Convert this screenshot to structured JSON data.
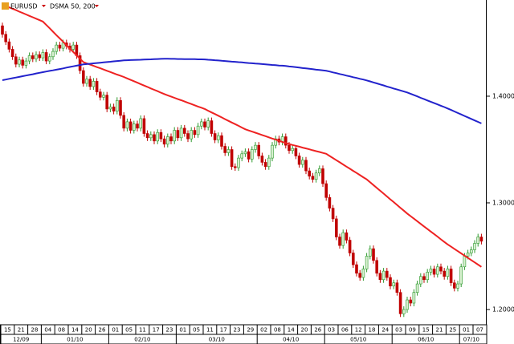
{
  "chart_data": {
    "type": "candlestick",
    "symbol": "EURUSD",
    "indicator": "DSMA 50, 200",
    "categories": [
      "15",
      null,
      null,
      null,
      "21",
      null,
      null,
      null,
      "28",
      null,
      null,
      null,
      "04",
      null,
      null,
      null,
      "08",
      null,
      null,
      null,
      "14",
      null,
      null,
      null,
      "20",
      null,
      null,
      null,
      "26",
      null,
      null,
      null,
      "01",
      null,
      null,
      null,
      "05",
      null,
      null,
      null,
      "11",
      null,
      null,
      null,
      "17",
      null,
      null,
      null,
      "23",
      null,
      null,
      null,
      "01",
      null,
      null,
      null,
      "05",
      null,
      null,
      null,
      "11",
      null,
      null,
      null,
      "17",
      null,
      null,
      null,
      "23",
      null,
      null,
      null,
      "29",
      null,
      null,
      null,
      "02",
      null,
      null,
      null,
      "08",
      null,
      null,
      null,
      "14",
      null,
      null,
      null,
      "20",
      null,
      null,
      null,
      "26",
      null,
      null,
      null,
      "03",
      null,
      null,
      null,
      "06",
      null,
      null,
      null,
      "12",
      null,
      null,
      null,
      "18",
      null,
      null,
      null,
      "24",
      null,
      null,
      null,
      "03",
      null,
      null,
      null,
      "09",
      null,
      null,
      null,
      "15",
      null,
      null,
      null,
      "21",
      null,
      null,
      null,
      "25",
      null,
      null,
      null,
      "01",
      null,
      null,
      null,
      "07",
      null,
      null
    ],
    "month_categories": [
      "12/09",
      null,
      null,
      null,
      null,
      null,
      null,
      null,
      null,
      null,
      null,
      null,
      "01/10",
      null,
      null,
      null,
      null,
      null,
      null,
      null,
      null,
      null,
      null,
      null,
      null,
      null,
      null,
      null,
      null,
      null,
      null,
      null,
      "02/10",
      null,
      null,
      null,
      null,
      null,
      null,
      null,
      null,
      null,
      null,
      null,
      null,
      null,
      null,
      null,
      null,
      null,
      null,
      null,
      "03/10",
      null,
      null,
      null,
      null,
      null,
      null,
      null,
      null,
      null,
      null,
      null,
      null,
      null,
      null,
      null,
      null,
      null,
      null,
      null,
      null,
      null,
      null,
      null,
      "04/10",
      null,
      null,
      null,
      null,
      null,
      null,
      null,
      null,
      null,
      null,
      null,
      null,
      null,
      null,
      null,
      null,
      null,
      null,
      null,
      "05/10",
      null,
      null,
      null,
      null,
      null,
      null,
      null,
      null,
      null,
      null,
      null,
      null,
      null,
      null,
      null,
      null,
      null,
      null,
      null,
      "06/10",
      null,
      null,
      null,
      null,
      null,
      null,
      null,
      null,
      null,
      null,
      null,
      null,
      null,
      null,
      null,
      null,
      null,
      null,
      null,
      "07/10",
      null,
      null,
      null,
      null,
      null,
      null
    ],
    "open": [
      1.466,
      1.458,
      1.451,
      1.444,
      1.437,
      1.43,
      1.434,
      1.429,
      1.433,
      1.438,
      1.435,
      1.439,
      1.436,
      1.441,
      1.433,
      1.437,
      1.442,
      1.448,
      1.445,
      1.45,
      1.447,
      1.444,
      1.448,
      1.438,
      1.424,
      1.412,
      1.416,
      1.409,
      1.414,
      1.404,
      1.399,
      1.401,
      1.388,
      1.39,
      1.386,
      1.396,
      1.382,
      1.37,
      1.376,
      1.368,
      1.374,
      1.37,
      1.379,
      1.365,
      1.361,
      1.364,
      1.358,
      1.366,
      1.36,
      1.355,
      1.362,
      1.358,
      1.368,
      1.361,
      1.37,
      1.365,
      1.36,
      1.368,
      1.364,
      1.372,
      1.376,
      1.371,
      1.377,
      1.365,
      1.359,
      1.363,
      1.353,
      1.347,
      1.35,
      1.334,
      1.333,
      1.342,
      1.346,
      1.348,
      1.341,
      1.35,
      1.354,
      1.344,
      1.338,
      1.334,
      1.342,
      1.354,
      1.36,
      1.357,
      1.362,
      1.354,
      1.349,
      1.351,
      1.344,
      1.336,
      1.34,
      1.33,
      1.325,
      1.322,
      1.328,
      1.332,
      1.318,
      1.305,
      1.295,
      1.285,
      1.268,
      1.26,
      1.272,
      1.265,
      1.253,
      1.242,
      1.234,
      1.23,
      1.238,
      1.25,
      1.257,
      1.246,
      1.234,
      1.228,
      1.236,
      1.23,
      1.222,
      1.225,
      1.216,
      1.196,
      1.2,
      1.209,
      1.206,
      1.216,
      1.224,
      1.231,
      1.228,
      1.235,
      1.238,
      1.233,
      1.24,
      1.236,
      1.231,
      1.238,
      1.225,
      1.22,
      1.224,
      1.24,
      1.25,
      1.253,
      1.256,
      1.262,
      1.268
    ],
    "high": [
      1.469,
      1.461,
      1.454,
      1.447,
      1.44,
      1.437,
      1.437,
      1.436,
      1.441,
      1.441,
      1.442,
      1.442,
      1.444,
      1.444,
      1.44,
      1.445,
      1.451,
      1.451,
      1.453,
      1.453,
      1.45,
      1.451,
      1.451,
      1.441,
      1.427,
      1.419,
      1.419,
      1.417,
      1.417,
      1.407,
      1.404,
      1.404,
      1.393,
      1.393,
      1.399,
      1.399,
      1.385,
      1.379,
      1.379,
      1.377,
      1.377,
      1.382,
      1.382,
      1.368,
      1.367,
      1.367,
      1.369,
      1.369,
      1.363,
      1.365,
      1.365,
      1.371,
      1.371,
      1.373,
      1.373,
      1.368,
      1.371,
      1.371,
      1.375,
      1.379,
      1.379,
      1.38,
      1.38,
      1.368,
      1.366,
      1.366,
      1.356,
      1.353,
      1.353,
      1.337,
      1.345,
      1.349,
      1.351,
      1.351,
      1.353,
      1.357,
      1.357,
      1.347,
      1.341,
      1.345,
      1.357,
      1.363,
      1.363,
      1.365,
      1.365,
      1.357,
      1.354,
      1.354,
      1.347,
      1.343,
      1.343,
      1.333,
      1.328,
      1.331,
      1.335,
      1.335,
      1.321,
      1.308,
      1.298,
      1.288,
      1.271,
      1.275,
      1.275,
      1.268,
      1.256,
      1.245,
      1.237,
      1.241,
      1.253,
      1.26,
      1.26,
      1.249,
      1.237,
      1.239,
      1.239,
      1.233,
      1.228,
      1.228,
      1.219,
      1.203,
      1.212,
      1.212,
      1.219,
      1.227,
      1.234,
      1.234,
      1.238,
      1.241,
      1.241,
      1.243,
      1.243,
      1.239,
      1.241,
      1.241,
      1.228,
      1.227,
      1.243,
      1.253,
      1.256,
      1.259,
      1.265,
      1.271,
      1.271
    ],
    "low": [
      1.455,
      1.448,
      1.441,
      1.434,
      1.427,
      1.427,
      1.426,
      1.426,
      1.43,
      1.432,
      1.432,
      1.433,
      1.433,
      1.43,
      1.43,
      1.434,
      1.439,
      1.442,
      1.442,
      1.444,
      1.441,
      1.441,
      1.435,
      1.421,
      1.409,
      1.409,
      1.406,
      1.406,
      1.401,
      1.396,
      1.396,
      1.385,
      1.385,
      1.383,
      1.383,
      1.379,
      1.367,
      1.367,
      1.365,
      1.365,
      1.367,
      1.367,
      1.362,
      1.358,
      1.358,
      1.355,
      1.355,
      1.357,
      1.352,
      1.352,
      1.355,
      1.355,
      1.358,
      1.358,
      1.362,
      1.357,
      1.357,
      1.361,
      1.361,
      1.369,
      1.368,
      1.368,
      1.362,
      1.356,
      1.356,
      1.35,
      1.344,
      1.344,
      1.331,
      1.33,
      1.33,
      1.339,
      1.343,
      1.338,
      1.338,
      1.347,
      1.341,
      1.335,
      1.331,
      1.331,
      1.339,
      1.351,
      1.354,
      1.354,
      1.351,
      1.346,
      1.346,
      1.341,
      1.333,
      1.333,
      1.327,
      1.322,
      1.319,
      1.319,
      1.325,
      1.315,
      1.302,
      1.292,
      1.282,
      1.265,
      1.257,
      1.257,
      1.262,
      1.25,
      1.239,
      1.231,
      1.227,
      1.227,
      1.235,
      1.247,
      1.243,
      1.231,
      1.225,
      1.225,
      1.227,
      1.219,
      1.219,
      1.213,
      1.193,
      1.193,
      1.197,
      1.203,
      1.203,
      1.213,
      1.221,
      1.225,
      1.225,
      1.232,
      1.23,
      1.23,
      1.233,
      1.228,
      1.228,
      1.222,
      1.217,
      1.217,
      1.221,
      1.237,
      1.247,
      1.25,
      1.253,
      1.259,
      1.261
    ],
    "close": [
      1.458,
      1.451,
      1.444,
      1.437,
      1.43,
      1.434,
      1.429,
      1.433,
      1.438,
      1.435,
      1.439,
      1.436,
      1.441,
      1.433,
      1.437,
      1.442,
      1.448,
      1.445,
      1.45,
      1.447,
      1.444,
      1.448,
      1.438,
      1.424,
      1.412,
      1.416,
      1.409,
      1.414,
      1.404,
      1.399,
      1.401,
      1.388,
      1.39,
      1.386,
      1.396,
      1.382,
      1.37,
      1.376,
      1.368,
      1.374,
      1.37,
      1.379,
      1.365,
      1.361,
      1.364,
      1.358,
      1.366,
      1.36,
      1.355,
      1.362,
      1.358,
      1.368,
      1.361,
      1.37,
      1.365,
      1.36,
      1.368,
      1.364,
      1.372,
      1.376,
      1.371,
      1.377,
      1.365,
      1.359,
      1.363,
      1.353,
      1.347,
      1.35,
      1.334,
      1.333,
      1.342,
      1.346,
      1.348,
      1.341,
      1.35,
      1.354,
      1.344,
      1.338,
      1.334,
      1.342,
      1.354,
      1.36,
      1.357,
      1.362,
      1.354,
      1.349,
      1.351,
      1.344,
      1.336,
      1.34,
      1.33,
      1.325,
      1.322,
      1.328,
      1.332,
      1.318,
      1.305,
      1.295,
      1.285,
      1.268,
      1.26,
      1.272,
      1.265,
      1.253,
      1.242,
      1.234,
      1.23,
      1.238,
      1.25,
      1.257,
      1.246,
      1.234,
      1.228,
      1.236,
      1.23,
      1.222,
      1.225,
      1.216,
      1.196,
      1.2,
      1.209,
      1.206,
      1.216,
      1.224,
      1.231,
      1.228,
      1.235,
      1.238,
      1.233,
      1.24,
      1.236,
      1.231,
      1.238,
      1.225,
      1.22,
      1.224,
      1.24,
      1.25,
      1.253,
      1.256,
      1.262,
      1.268,
      1.264
    ],
    "up_color": "#2e9a2e",
    "down_color": "#c00000",
    "series": [
      {
        "color": "#ee2222",
        "values": [
          1.486,
          1.4847,
          1.4833,
          1.482,
          1.4807,
          1.4793,
          1.478,
          1.4767,
          1.4753,
          1.474,
          1.4727,
          1.4713,
          1.47,
          1.4668,
          1.4637,
          1.4605,
          1.4573,
          1.4542,
          1.451,
          1.4478,
          1.4447,
          1.4415,
          1.4383,
          1.4352,
          1.432,
          1.4308,
          1.4297,
          1.4285,
          1.4273,
          1.4262,
          1.425,
          1.4238,
          1.4227,
          1.4215,
          1.4203,
          1.4192,
          1.418,
          1.4167,
          1.4153,
          1.414,
          1.4127,
          1.4113,
          1.41,
          1.4087,
          1.4073,
          1.406,
          1.4047,
          1.4033,
          1.402,
          1.4008,
          1.3997,
          1.3985,
          1.3973,
          1.3962,
          1.395,
          1.3938,
          1.3927,
          1.3915,
          1.3903,
          1.3892,
          1.388,
          1.3864,
          1.3848,
          1.3833,
          1.3817,
          1.3801,
          1.3785,
          1.3769,
          1.3753,
          1.3738,
          1.3722,
          1.3706,
          1.369,
          1.3679,
          1.3668,
          1.3658,
          1.3647,
          1.3636,
          1.3625,
          1.3614,
          1.3603,
          1.3593,
          1.3582,
          1.3571,
          1.356,
          1.3552,
          1.3543,
          1.3535,
          1.3527,
          1.3518,
          1.351,
          1.3502,
          1.3493,
          1.3485,
          1.3477,
          1.3468,
          1.346,
          1.344,
          1.342,
          1.34,
          1.338,
          1.336,
          1.334,
          1.332,
          1.33,
          1.328,
          1.326,
          1.324,
          1.322,
          1.3193,
          1.3167,
          1.314,
          1.3113,
          1.3087,
          1.306,
          1.3033,
          1.3007,
          1.298,
          1.2953,
          1.2927,
          1.29,
          1.2876,
          1.2852,
          1.2828,
          1.2803,
          1.2779,
          1.2755,
          1.2731,
          1.2707,
          1.2683,
          1.2658,
          1.2634,
          1.261,
          1.2589,
          1.2568,
          1.2547,
          1.2526,
          1.2505,
          1.2484,
          1.2463,
          1.2442,
          1.2421,
          1.24
        ]
      },
      {
        "color": "#2222cc",
        "values": [
          1.415,
          1.4156,
          1.4163,
          1.4169,
          1.4175,
          1.4181,
          1.4188,
          1.4194,
          1.42,
          1.4206,
          1.4213,
          1.4219,
          1.4225,
          1.4231,
          1.4237,
          1.4243,
          1.4249,
          1.4255,
          1.4261,
          1.4268,
          1.4274,
          1.428,
          1.4286,
          1.4292,
          1.4298,
          1.4301,
          1.4304,
          1.4308,
          1.4311,
          1.4314,
          1.4317,
          1.432,
          1.4323,
          1.4327,
          1.433,
          1.4333,
          1.4336,
          1.4337,
          1.4339,
          1.434,
          1.4341,
          1.4342,
          1.4344,
          1.4345,
          1.4346,
          1.4347,
          1.4349,
          1.435,
          1.4351,
          1.4351,
          1.435,
          1.435,
          1.4349,
          1.4349,
          1.4348,
          1.4348,
          1.4347,
          1.4347,
          1.4346,
          1.4346,
          1.4345,
          1.4342,
          1.434,
          1.4337,
          1.4335,
          1.4332,
          1.433,
          1.4327,
          1.4324,
          1.4322,
          1.4319,
          1.4317,
          1.4314,
          1.4311,
          1.4309,
          1.4306,
          1.4304,
          1.4301,
          1.4299,
          1.4296,
          1.4293,
          1.4291,
          1.4288,
          1.4286,
          1.4283,
          1.4279,
          1.4276,
          1.4272,
          1.4268,
          1.4264,
          1.4261,
          1.4257,
          1.4253,
          1.4249,
          1.4246,
          1.4242,
          1.4238,
          1.4231,
          1.4223,
          1.4216,
          1.4208,
          1.4201,
          1.4193,
          1.4186,
          1.4178,
          1.4171,
          1.4163,
          1.4156,
          1.4148,
          1.4139,
          1.4129,
          1.412,
          1.411,
          1.4101,
          1.4091,
          1.4082,
          1.4072,
          1.4063,
          1.4054,
          1.4044,
          1.4035,
          1.4023,
          1.401,
          1.3998,
          1.3985,
          1.3973,
          1.396,
          1.3948,
          1.3935,
          1.3923,
          1.391,
          1.3898,
          1.3885,
          1.3871,
          1.3857,
          1.3843,
          1.3829,
          1.3815,
          1.3801,
          1.3787,
          1.3773,
          1.3759,
          1.3745
        ]
      }
    ],
    "ylim": [
      1.1857,
      1.4902
    ],
    "yticks": [
      {
        "value": 1.2,
        "label": "1.20000"
      },
      {
        "value": 1.3,
        "label": "1.30000"
      },
      {
        "value": 1.4,
        "label": "1.40000"
      }
    ],
    "grid": false
  }
}
